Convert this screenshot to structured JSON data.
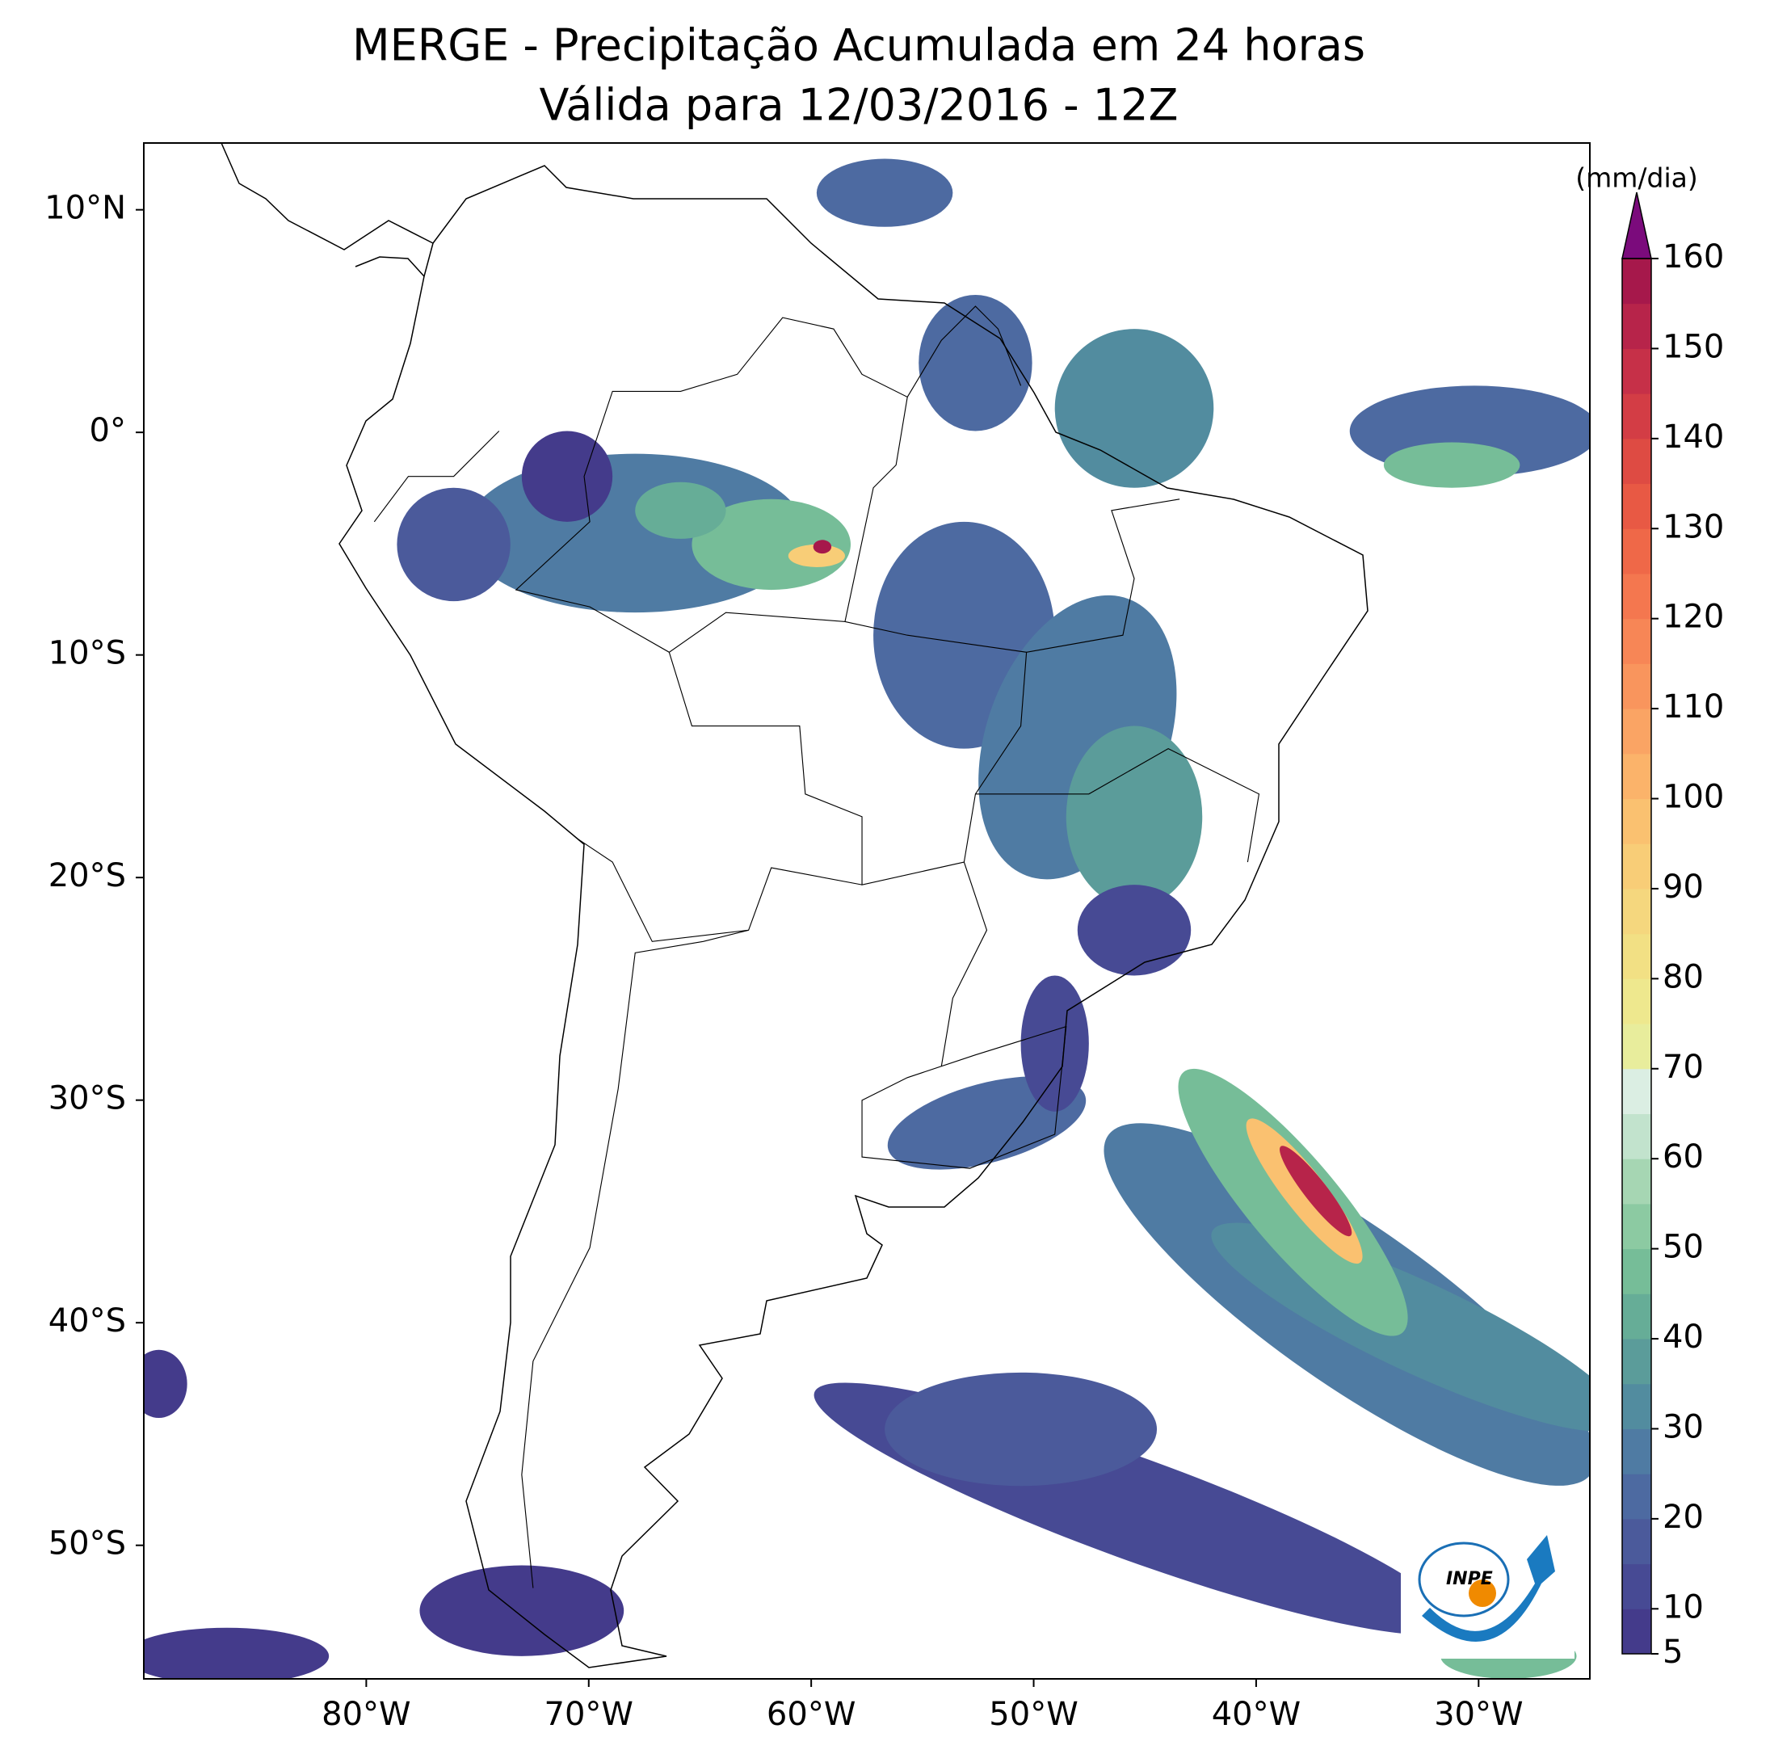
{
  "map": {
    "title": "MERGE - Precipitação Acumulada em 24 horas",
    "subtitle": "Válida para 12/03/2016 - 12Z",
    "xlim": [
      -90,
      -25
    ],
    "ylim": [
      -56,
      13
    ],
    "xticks": [
      {
        "value": -80,
        "label": "80°W"
      },
      {
        "value": -70,
        "label": "70°W"
      },
      {
        "value": -60,
        "label": "60°W"
      },
      {
        "value": -50,
        "label": "50°W"
      },
      {
        "value": -40,
        "label": "40°W"
      },
      {
        "value": -30,
        "label": "30°W"
      }
    ],
    "yticks": [
      {
        "value": 10,
        "label": "10°N"
      },
      {
        "value": 0,
        "label": "0°"
      },
      {
        "value": -10,
        "label": "10°S"
      },
      {
        "value": -20,
        "label": "20°S"
      },
      {
        "value": -30,
        "label": "30°S"
      },
      {
        "value": -40,
        "label": "40°S"
      },
      {
        "value": -50,
        "label": "50°S"
      }
    ],
    "colorbar": {
      "label": "(mm/dia)",
      "lim": [
        5,
        160
      ],
      "ticks": [
        5,
        10,
        20,
        30,
        40,
        50,
        60,
        70,
        80,
        90,
        100,
        110,
        120,
        130,
        140,
        150,
        160
      ],
      "colors": [
        "#443b8b",
        "#474a94",
        "#4b5a9b",
        "#4d6aa1",
        "#4f7ba3",
        "#528c9f",
        "#5b9c9a",
        "#66ad97",
        "#76bd98",
        "#8ccaa2",
        "#a6d6b3",
        "#c2e3cd",
        "#dbeee3",
        "#e8ed9c",
        "#eee88e",
        "#f2e084",
        "#f5d77e",
        "#f8cd77",
        "#fac170",
        "#fbb36a",
        "#faa464",
        "#f9955d",
        "#f78656",
        "#f4774f",
        "#ef6848",
        "#e85944",
        "#de4b43",
        "#d33d45",
        "#c63048",
        "#b7244a",
        "#a6184b"
      ],
      "extend_color": "#7b0b7c"
    },
    "logo_text": "INPE"
  }
}
